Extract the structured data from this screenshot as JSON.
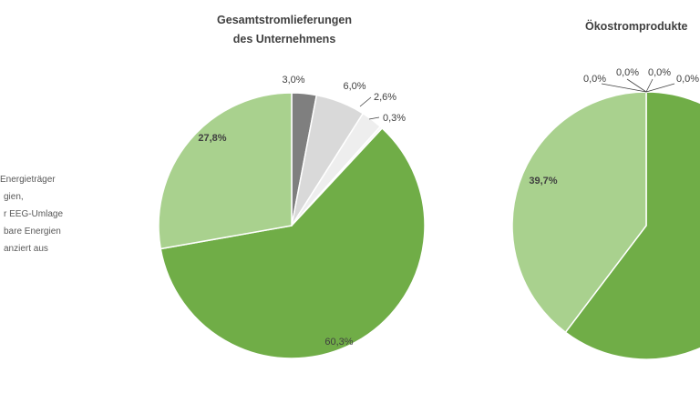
{
  "legend": {
    "entries": [
      "Energieträger",
      "gien,",
      "r EEG-Umlage",
      "bare Energien",
      "anziert aus"
    ]
  },
  "chart_data": [
    {
      "type": "pie",
      "title": "Gesamtstromlieferungen des Unternehmens",
      "title_lines": [
        "Gesamtstromlieferungen",
        "des Unternehmens"
      ],
      "slices": [
        {
          "value": 3.0,
          "label": "3,0%",
          "color": "#7f7f7f"
        },
        {
          "value": 6.0,
          "label": "6,0%",
          "color": "#d9d9d9"
        },
        {
          "value": 2.6,
          "label": "2,6%",
          "color": "#eeeeee"
        },
        {
          "value": 0.3,
          "label": "0,3%",
          "color": "#f5f5f5"
        },
        {
          "value": 60.3,
          "label": "60,3%",
          "color": "#70ad47"
        },
        {
          "value": 27.8,
          "label": "27,8%",
          "color": "#a9d18e"
        }
      ]
    },
    {
      "type": "pie",
      "title": "Ökostromprodukte",
      "title_lines": [
        "Ökostromprodukte"
      ],
      "slices": [
        {
          "value": 0.0,
          "label": "0,0%",
          "color": "#7f7f7f"
        },
        {
          "value": 0.0,
          "label": "0,0%",
          "color": "#d9d9d9"
        },
        {
          "value": 0.0,
          "label": "0,0%",
          "color": "#eeeeee"
        },
        {
          "value": 0.0,
          "label": "0,0%",
          "color": "#f5f5f5"
        },
        {
          "value": 60.3,
          "label": "",
          "color": "#70ad47"
        },
        {
          "value": 39.7,
          "label": "39,7%",
          "color": "#a9d18e"
        }
      ]
    }
  ]
}
